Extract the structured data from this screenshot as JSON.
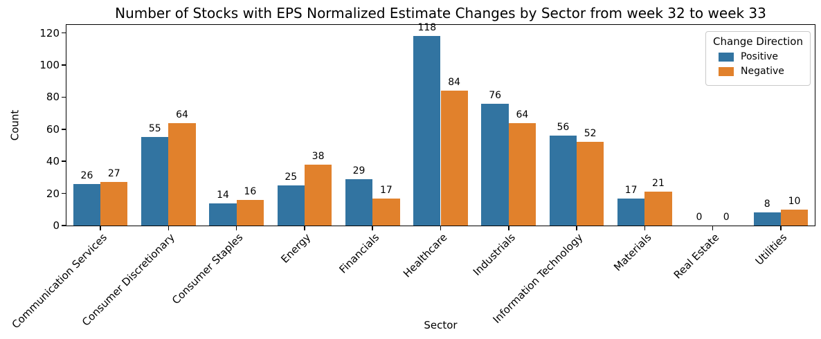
{
  "chart_data": {
    "type": "bar",
    "title": "Number of Stocks with EPS Normalized Estimate Changes by Sector from week 32 to week 33",
    "xlabel": "Sector",
    "ylabel": "Count",
    "legend_title": "Change Direction",
    "legend_position": "upper right",
    "grid": false,
    "categories": [
      "Communication Services",
      "Consumer Discretionary",
      "Consumer Staples",
      "Energy",
      "Financials",
      "Healthcare",
      "Industrials",
      "Information Technology",
      "Materials",
      "Real Estate",
      "Utilities"
    ],
    "series": [
      {
        "name": "Positive",
        "color": "#3274a1",
        "values": [
          26,
          55,
          14,
          25,
          29,
          118,
          76,
          56,
          17,
          0,
          8
        ]
      },
      {
        "name": "Negative",
        "color": "#e1812c",
        "values": [
          27,
          64,
          16,
          38,
          17,
          84,
          64,
          52,
          21,
          0,
          10
        ]
      }
    ],
    "yticks": [
      0,
      20,
      40,
      60,
      80,
      100,
      120
    ],
    "ylim": [
      0,
      125
    ],
    "bar_value_labels_visible": true
  }
}
